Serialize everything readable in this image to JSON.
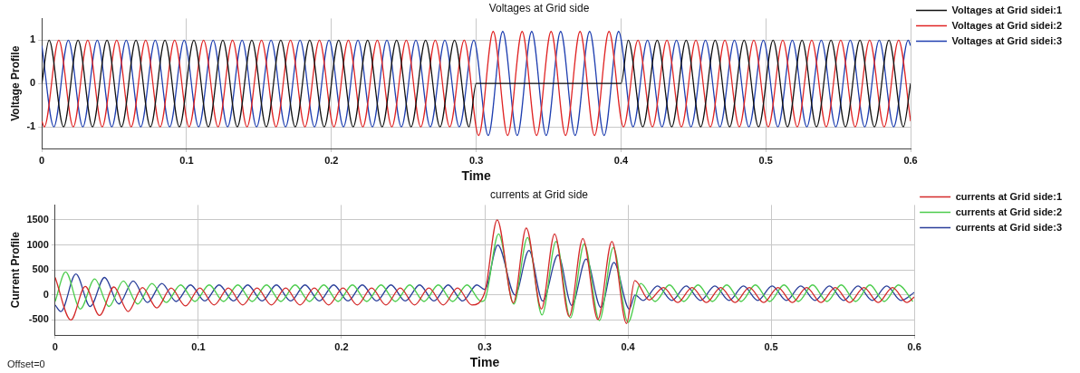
{
  "chart_data": [
    {
      "type": "line",
      "title": "Voltages at Grid side",
      "xlabel": "Time",
      "ylabel": "Voltage Profile",
      "xlim": [
        0,
        0.6
      ],
      "xticks": [
        0,
        0.1,
        0.2,
        0.3,
        0.4,
        0.5,
        0.6
      ],
      "ylim": [
        -1.5,
        1.5
      ],
      "yticks": [
        -1,
        0,
        1
      ],
      "grid": true,
      "legend": "right",
      "marker": "none",
      "line_style": "solid",
      "series": [
        {
          "name": "Voltages at Grid sidei:1",
          "color": "#111111",
          "x": [
            0,
            0.005,
            0.015,
            0.025,
            0.035,
            0.045,
            0.055,
            0.065,
            0.075,
            0.085,
            0.095,
            0.105,
            0.115,
            0.125,
            0.135,
            0.145,
            0.155,
            0.165,
            0.175,
            0.185,
            0.195,
            0.205,
            0.215,
            0.225,
            0.235,
            0.245,
            0.255,
            0.265,
            0.275,
            0.285,
            0.295,
            0.3,
            0.4,
            0.405,
            0.415,
            0.425,
            0.435,
            0.445,
            0.455,
            0.465,
            0.475,
            0.485,
            0.495,
            0.505,
            0.515,
            0.525,
            0.535,
            0.545,
            0.555,
            0.565,
            0.575,
            0.585,
            0.595,
            0.6
          ],
          "values": [
            0,
            1,
            -1,
            1,
            -1,
            1,
            -1,
            1,
            -1,
            1,
            -1,
            1,
            -1,
            1,
            -1,
            1,
            -1,
            1,
            -1,
            1,
            -1,
            1,
            -1,
            1,
            -1,
            1,
            -1,
            1,
            -1,
            1,
            -1,
            0,
            0,
            1,
            -1,
            1,
            -1,
            1,
            -1,
            1,
            -1,
            1,
            -1,
            1,
            -1,
            1,
            -1,
            1,
            -1,
            1,
            -1,
            1,
            -1,
            0
          ]
        },
        {
          "name": "Voltages at Grid sidei:2",
          "color": "#e02424",
          "x": [
            0,
            0.0017,
            0.0117,
            0.0217,
            0.0317,
            0.0417,
            0.0517,
            0.0617,
            0.0717,
            0.0817,
            0.0917,
            0.1017,
            0.1117,
            0.1217,
            0.1317,
            0.1417,
            0.1517,
            0.1617,
            0.1717,
            0.1817,
            0.1917,
            0.2017,
            0.2117,
            0.2217,
            0.2317,
            0.2417,
            0.2517,
            0.2617,
            0.2717,
            0.2817,
            0.2917,
            0.3017,
            0.3117,
            0.3217,
            0.3317,
            0.3417,
            0.3517,
            0.3617,
            0.3717,
            0.3817,
            0.3917,
            0.4017,
            0.4117,
            0.4217,
            0.4317,
            0.4417,
            0.4517,
            0.4617,
            0.4717,
            0.4817,
            0.4917,
            0.5017,
            0.5117,
            0.5217,
            0.5317,
            0.5417,
            0.5517,
            0.5617,
            0.5717,
            0.5817,
            0.5917,
            0.6
          ],
          "values": [
            -0.87,
            -1,
            1,
            -1,
            1,
            -1,
            1,
            -1,
            1,
            -1,
            1,
            -1,
            1,
            -1,
            1,
            -1,
            1,
            -1,
            1,
            -1,
            1,
            -1,
            1,
            -1,
            1,
            -1,
            1,
            -1,
            1,
            -1,
            1,
            -1.2,
            1.2,
            -1.2,
            1.2,
            -1.2,
            1.2,
            -1.2,
            1.2,
            -1.2,
            1.2,
            -1,
            1,
            -1,
            1,
            -1,
            1,
            -1,
            1,
            -1,
            1,
            -1,
            1,
            -1,
            1,
            -1,
            1,
            -1,
            1,
            -1,
            1,
            -0.87
          ]
        },
        {
          "name": "Voltages at Grid sidei:3",
          "color": "#1f3fb0",
          "x": [
            0,
            0.0083,
            0.0183,
            0.0283,
            0.0383,
            0.0483,
            0.0583,
            0.0683,
            0.0783,
            0.0883,
            0.0983,
            0.1083,
            0.1183,
            0.1283,
            0.1383,
            0.1483,
            0.1583,
            0.1683,
            0.1783,
            0.1883,
            0.1983,
            0.2083,
            0.2183,
            0.2283,
            0.2383,
            0.2483,
            0.2583,
            0.2683,
            0.2783,
            0.2883,
            0.2983,
            0.3083,
            0.3183,
            0.3283,
            0.3383,
            0.3483,
            0.3583,
            0.3683,
            0.3783,
            0.3883,
            0.3983,
            0.4083,
            0.4183,
            0.4283,
            0.4383,
            0.4483,
            0.4583,
            0.4683,
            0.4783,
            0.4883,
            0.4983,
            0.5083,
            0.5183,
            0.5283,
            0.5383,
            0.5483,
            0.5583,
            0.5683,
            0.5783,
            0.5883,
            0.5983,
            0.6
          ],
          "values": [
            0.87,
            -1,
            1,
            -1,
            1,
            -1,
            1,
            -1,
            1,
            -1,
            1,
            -1,
            1,
            -1,
            1,
            -1,
            1,
            -1,
            1,
            -1,
            1,
            -1,
            1,
            -1,
            1,
            -1,
            1,
            -1,
            1,
            -1,
            1,
            -1.2,
            1.2,
            -1.2,
            1.2,
            -1.2,
            1.2,
            -1.2,
            1.2,
            -1.2,
            1.2,
            -1,
            1,
            -1,
            1,
            -1,
            1,
            -1,
            1,
            -1,
            1,
            -1,
            1,
            -1,
            1,
            -1,
            1,
            -1,
            1,
            -1,
            1,
            0.87
          ]
        }
      ]
    },
    {
      "type": "line",
      "title": "currents at Grid side",
      "xlabel": "Time",
      "ylabel": "Current Profile",
      "xlim": [
        0,
        0.6
      ],
      "xticks": [
        0,
        0.1,
        0.2,
        0.3,
        0.4,
        0.5,
        0.6
      ],
      "ylim": [
        -800,
        1800
      ],
      "yticks": [
        -500,
        0,
        500,
        1000,
        1500
      ],
      "grid": true,
      "legend": "right",
      "marker": "none",
      "line_style": "solid",
      "annotations": [
        "Offset=0"
      ],
      "series": [
        {
          "name": "currents at Grid side:1",
          "color": "#d42a2a",
          "x": [
            0,
            0.011,
            0.021,
            0.031,
            0.041,
            0.051,
            0.061,
            0.071,
            0.081,
            0.091,
            0.101,
            0.111,
            0.121,
            0.131,
            0.141,
            0.151,
            0.161,
            0.171,
            0.181,
            0.191,
            0.201,
            0.211,
            0.221,
            0.231,
            0.241,
            0.251,
            0.261,
            0.271,
            0.281,
            0.291,
            0.3,
            0.3087,
            0.32,
            0.329,
            0.3396,
            0.3488,
            0.359,
            0.3685,
            0.379,
            0.3888,
            0.399,
            0.4048,
            0.4148,
            0.4248,
            0.4348,
            0.4448,
            0.4548,
            0.4648,
            0.4748,
            0.4848,
            0.4948,
            0.5048,
            0.5148,
            0.5248,
            0.5348,
            0.5448,
            0.5548,
            0.5648,
            0.5748,
            0.5848,
            0.5948,
            0.6
          ],
          "values": [
            350,
            -500,
            170,
            -410,
            160,
            -330,
            150,
            -260,
            140,
            -220,
            140,
            -200,
            140,
            -200,
            140,
            -200,
            140,
            -200,
            140,
            -200,
            140,
            -200,
            140,
            -200,
            140,
            -200,
            140,
            -200,
            140,
            -200,
            50,
            1500,
            -160,
            1340,
            -280,
            1220,
            -430,
            1130,
            -490,
            1070,
            -570,
            290,
            -100,
            150,
            -150,
            150,
            -150,
            150,
            -150,
            150,
            -150,
            150,
            -150,
            150,
            -150,
            150,
            -150,
            150,
            -150,
            150,
            -150,
            -40
          ]
        },
        {
          "name": "currents at Grid side:2",
          "color": "#4ccc4c",
          "x": [
            0,
            0.0073,
            0.0176,
            0.0276,
            0.0376,
            0.0476,
            0.0576,
            0.0676,
            0.0776,
            0.0876,
            0.0976,
            0.1076,
            0.1176,
            0.1276,
            0.1376,
            0.1476,
            0.1576,
            0.1676,
            0.1776,
            0.1876,
            0.1976,
            0.2076,
            0.2176,
            0.2276,
            0.2376,
            0.2476,
            0.2576,
            0.2676,
            0.2776,
            0.2876,
            0.2976,
            0.3,
            0.3097,
            0.3203,
            0.3299,
            0.34,
            0.3498,
            0.3598,
            0.3695,
            0.3801,
            0.3898,
            0.4,
            0.409,
            0.419,
            0.429,
            0.439,
            0.449,
            0.459,
            0.469,
            0.479,
            0.489,
            0.499,
            0.509,
            0.519,
            0.529,
            0.539,
            0.549,
            0.559,
            0.569,
            0.579,
            0.589,
            0.599
          ],
          "values": [
            -130,
            460,
            -280,
            320,
            -230,
            280,
            -180,
            230,
            -150,
            200,
            -130,
            200,
            -130,
            200,
            -130,
            200,
            -130,
            200,
            -130,
            200,
            -130,
            200,
            -130,
            200,
            -130,
            200,
            -130,
            200,
            -130,
            200,
            -130,
            -100,
            1220,
            -180,
            1150,
            -400,
            1070,
            -460,
            1020,
            -510,
            950,
            -550,
            230,
            -130,
            200,
            -130,
            200,
            -130,
            200,
            -130,
            200,
            -130,
            200,
            -130,
            200,
            -130,
            200,
            -130,
            200,
            -130,
            200,
            -130
          ]
        },
        {
          "name": "currents at Grid side:3",
          "color": "#2a3f9a",
          "x": [
            0,
            0.004,
            0.0145,
            0.0245,
            0.0345,
            0.0445,
            0.0545,
            0.0645,
            0.0745,
            0.0845,
            0.0945,
            0.1045,
            0.1145,
            0.1245,
            0.1345,
            0.1445,
            0.1545,
            0.1645,
            0.1745,
            0.1845,
            0.1945,
            0.2045,
            0.2145,
            0.2245,
            0.2345,
            0.2445,
            0.2545,
            0.2645,
            0.2745,
            0.2845,
            0.2945,
            0.3,
            0.3091,
            0.3212,
            0.3309,
            0.3405,
            0.3512,
            0.3608,
            0.3708,
            0.3811,
            0.3902,
            0.401,
            0.405,
            0.4107,
            0.4207,
            0.4307,
            0.4407,
            0.4507,
            0.4607,
            0.4707,
            0.4807,
            0.4907,
            0.5007,
            0.5107,
            0.5207,
            0.5307,
            0.5407,
            0.5507,
            0.5607,
            0.5707,
            0.5807,
            0.5907,
            0.6
          ],
          "values": [
            -200,
            -330,
            420,
            -230,
            350,
            -180,
            280,
            -150,
            230,
            -130,
            200,
            -120,
            200,
            -120,
            200,
            -120,
            200,
            -120,
            200,
            -120,
            200,
            -120,
            200,
            -120,
            200,
            -120,
            200,
            -120,
            200,
            -120,
            200,
            110,
            1000,
            0,
            890,
            -120,
            800,
            -210,
            720,
            -250,
            650,
            -280,
            0,
            -110,
            180,
            -110,
            180,
            -110,
            180,
            -110,
            180,
            -110,
            180,
            -110,
            180,
            -110,
            180,
            -110,
            180,
            -110,
            180,
            -110,
            50
          ]
        }
      ]
    }
  ]
}
